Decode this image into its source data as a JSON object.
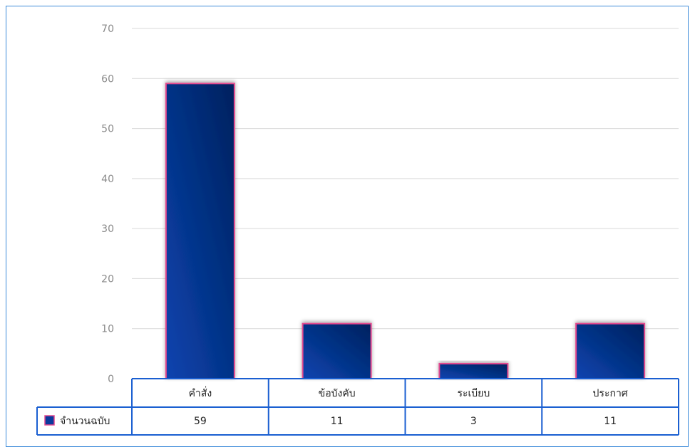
{
  "chart_data": {
    "type": "bar",
    "categories": [
      "คำสั่ง",
      "ข้อบังคับ",
      "ระเบียบ",
      "ประกาศ"
    ],
    "series": [
      {
        "name": "จำนวนฉบับ",
        "values": [
          59,
          11,
          3,
          11
        ]
      }
    ],
    "ylim": [
      0,
      70
    ],
    "yticks": [
      0,
      10,
      20,
      30,
      40,
      50,
      60,
      70
    ],
    "grid": true,
    "legend": "data-table-left",
    "data_table": true,
    "colors": {
      "bar_top": "#00215e",
      "bar_bottom": "#0a44b0",
      "bar_border": "#e2488f",
      "grid": "#d9d9d9",
      "table_border": "#1a5fd1",
      "frame_border": "#3d8bd9",
      "legend_swatch": "#0a3a9e"
    }
  }
}
